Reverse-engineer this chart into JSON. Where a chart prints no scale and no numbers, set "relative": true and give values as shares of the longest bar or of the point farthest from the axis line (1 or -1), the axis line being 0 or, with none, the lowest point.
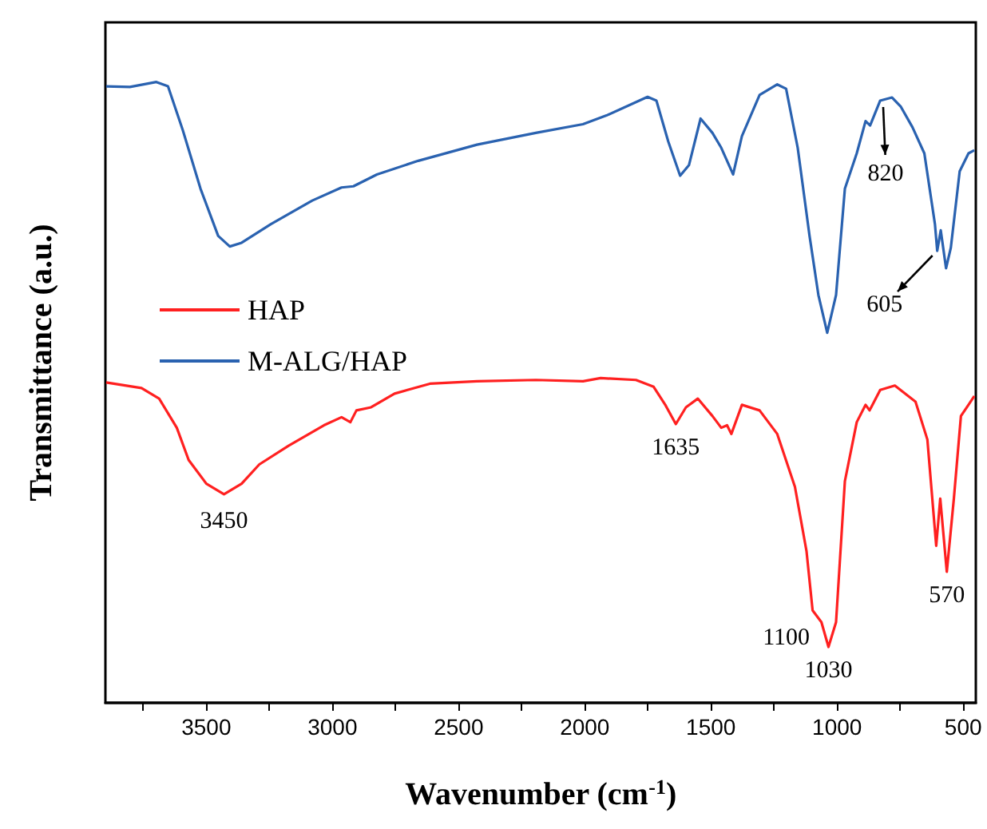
{
  "chart_data": {
    "type": "line",
    "relative": true,
    "xlabel": "Wavenumber (cm$^{-1}$)",
    "ylabel": "Transmittance (a.u.)",
    "xlim": [
      3900,
      450
    ],
    "xticks": [
      {
        "value": 3750,
        "label": null
      },
      3500,
      {
        "value": 3250,
        "label": null
      },
      3000,
      {
        "value": 2750,
        "label": null
      },
      2500,
      {
        "value": 2250,
        "label": null
      },
      2000,
      {
        "value": 1750,
        "label": null
      },
      1500,
      {
        "value": 1250,
        "label": null
      },
      1000,
      {
        "value": 750,
        "label": null
      },
      500
    ],
    "grid": false,
    "legend": "left",
    "marker": "none",
    "line_style": "solid",
    "series": [
      {
        "name": "HAP",
        "color": "#ff2020",
        "x": [
          3897,
          3757,
          3687,
          3617,
          3570,
          3500,
          3430,
          3360,
          3290,
          3174,
          3034,
          2964,
          2929,
          2905,
          2847,
          2754,
          2614,
          2427,
          2194,
          2007,
          1937,
          1797,
          1727,
          1681,
          1639,
          1599,
          1552,
          1494,
          1459,
          1436,
          1419,
          1377,
          1307,
          1237,
          1167,
          1121,
          1097,
          1062,
          1034,
          1004,
          969,
          922,
          887,
          871,
          829,
          771,
          689,
          642,
          607,
          591,
          565,
          537,
          509,
          479,
          456
        ],
        "values": [
          0.516,
          0.507,
          0.49,
          0.443,
          0.391,
          0.353,
          0.336,
          0.353,
          0.384,
          0.414,
          0.447,
          0.46,
          0.452,
          0.471,
          0.476,
          0.498,
          0.514,
          0.518,
          0.52,
          0.518,
          0.523,
          0.52,
          0.509,
          0.48,
          0.449,
          0.476,
          0.49,
          0.462,
          0.443,
          0.447,
          0.433,
          0.48,
          0.471,
          0.433,
          0.348,
          0.244,
          0.149,
          0.13,
          0.09,
          0.13,
          0.357,
          0.452,
          0.48,
          0.471,
          0.504,
          0.511,
          0.485,
          0.424,
          0.253,
          0.329,
          0.211,
          0.329,
          0.462,
          0.48,
          0.494
        ]
      },
      {
        "name": "M-ALG/HAP",
        "color": "#2a62b0",
        "x": [
          3897,
          3803,
          3698,
          3652,
          3593,
          3523,
          3453,
          3407,
          3360,
          3244,
          3080,
          2964,
          2917,
          2824,
          2660,
          2427,
          2194,
          2007,
          1914,
          1751,
          1716,
          1669,
          1622,
          1587,
          1541,
          1494,
          1459,
          1412,
          1377,
          1307,
          1237,
          1202,
          1156,
          1109,
          1074,
          1039,
          1004,
          969,
          922,
          887,
          869,
          829,
          782,
          747,
          701,
          654,
          612,
          603,
          589,
          568,
          549,
          514,
          479,
          456
        ],
        "values": [
          0.993,
          0.992,
          1,
          0.993,
          0.922,
          0.828,
          0.752,
          0.735,
          0.741,
          0.771,
          0.809,
          0.83,
          0.832,
          0.851,
          0.873,
          0.899,
          0.918,
          0.932,
          0.946,
          0.976,
          0.97,
          0.904,
          0.849,
          0.866,
          0.941,
          0.918,
          0.894,
          0.851,
          0.913,
          0.979,
          0.996,
          0.989,
          0.894,
          0.752,
          0.657,
          0.596,
          0.657,
          0.828,
          0.885,
          0.937,
          0.93,
          0.97,
          0.975,
          0.96,
          0.927,
          0.885,
          0.771,
          0.728,
          0.761,
          0.7,
          0.733,
          0.856,
          0.885,
          0.89
        ]
      }
    ],
    "annotations": [
      {
        "text": "3450",
        "x": 3430,
        "y": 0.336
      },
      {
        "text": "1635",
        "x": 1639,
        "y": 0.449
      },
      {
        "text": "1100",
        "x": 1100,
        "y": 0.15
      },
      {
        "text": "1030",
        "x": 1034,
        "y": 0.09
      },
      {
        "text": "570",
        "x": 565,
        "y": 0.211
      },
      {
        "text": "820",
        "x": 820,
        "y": 0.97
      },
      {
        "text": "605",
        "x": 603,
        "y": 0.728
      }
    ]
  }
}
